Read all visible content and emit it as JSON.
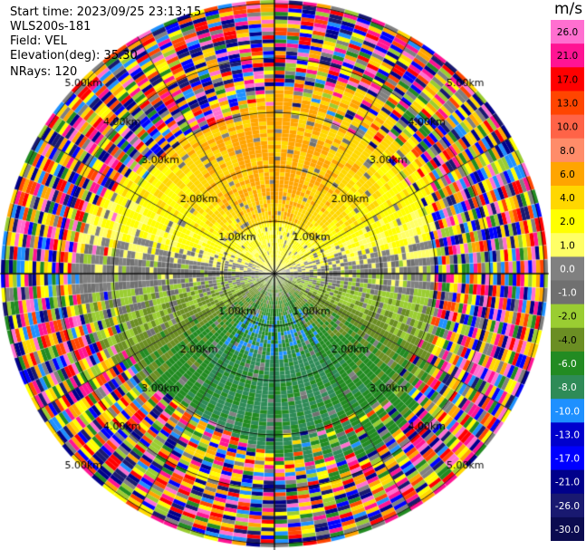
{
  "meta": {
    "start_time": "Start time: 2023/09/25 23:13:15",
    "instrument": "WLS200s-181",
    "field": "Field: VEL",
    "elevation": "Elevation(deg): 35.30",
    "nrays": "NRays: 120"
  },
  "colorbar": {
    "unit": "m/s",
    "ticks": [
      "26.0",
      "21.0",
      "17.0",
      "13.0",
      "10.0",
      "8.0",
      "6.0",
      "4.0",
      "2.0",
      "1.0",
      "0.0",
      "-1.0",
      "-2.0",
      "-4.0",
      "-6.0",
      "-8.0",
      "-10.0",
      "-13.0",
      "-17.0",
      "-21.0",
      "-26.0",
      "-30.0"
    ],
    "colors": [
      "#ff6fd0",
      "#ff1493",
      "#ff0000",
      "#ff4500",
      "#ff6347",
      "#ff8c69",
      "#ffa500",
      "#ffd700",
      "#ffff00",
      "#ffff66",
      "#808080",
      "#707070",
      "#9acd32",
      "#6b8e23",
      "#228b22",
      "#2e8b57",
      "#1e90ff",
      "#0000cd",
      "#0000ff",
      "#00008b",
      "#191970",
      "#0b0b50"
    ]
  },
  "chart_data": {
    "type": "heatmap",
    "title": "",
    "field": "VEL",
    "unit": "m/s",
    "projection": "polar PPI",
    "nrays": 120,
    "elevation_deg": 35.3,
    "range_rings_km": [
      1.0,
      2.0,
      3.0,
      4.0,
      5.0
    ],
    "ring_labels": [
      "1.00km",
      "2.00km",
      "3.00km",
      "4.00km",
      "5.00km"
    ],
    "range_max_km": 5.0,
    "sector_pattern": [
      {
        "region": "north near (0-1 km)",
        "velocity_ms": 2.0
      },
      {
        "region": "north mid (1-3 km)",
        "velocity_ms": 6.0
      },
      {
        "region": "east/west near",
        "velocity_ms": 0.0
      },
      {
        "region": "south near/mid (0-3.5 km)",
        "velocity_ms": -4.0
      },
      {
        "region": "south core",
        "velocity_ms": -8.0
      },
      {
        "region": "far range (>3.5 km)",
        "velocity_ms": "noise"
      }
    ]
  }
}
